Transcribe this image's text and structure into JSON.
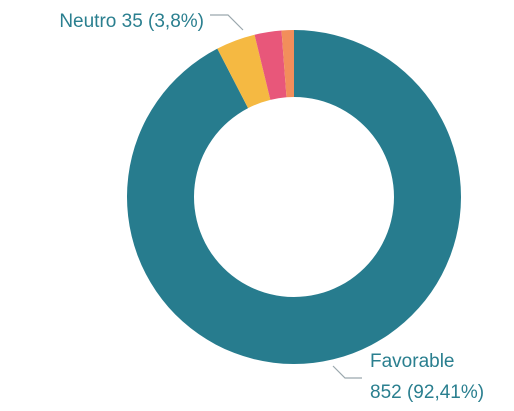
{
  "chart_data": {
    "type": "pie",
    "categories": [
      "Favorable",
      "Neutro",
      null,
      null
    ],
    "values": [
      852,
      35,
      24,
      11
    ],
    "value_labels": [
      "852 (92,41%)",
      "35 (3,8%)",
      null,
      null
    ],
    "colors": [
      "#277c8e",
      "#f5b942",
      "#e8577a",
      "#f28e5b"
    ]
  }
}
